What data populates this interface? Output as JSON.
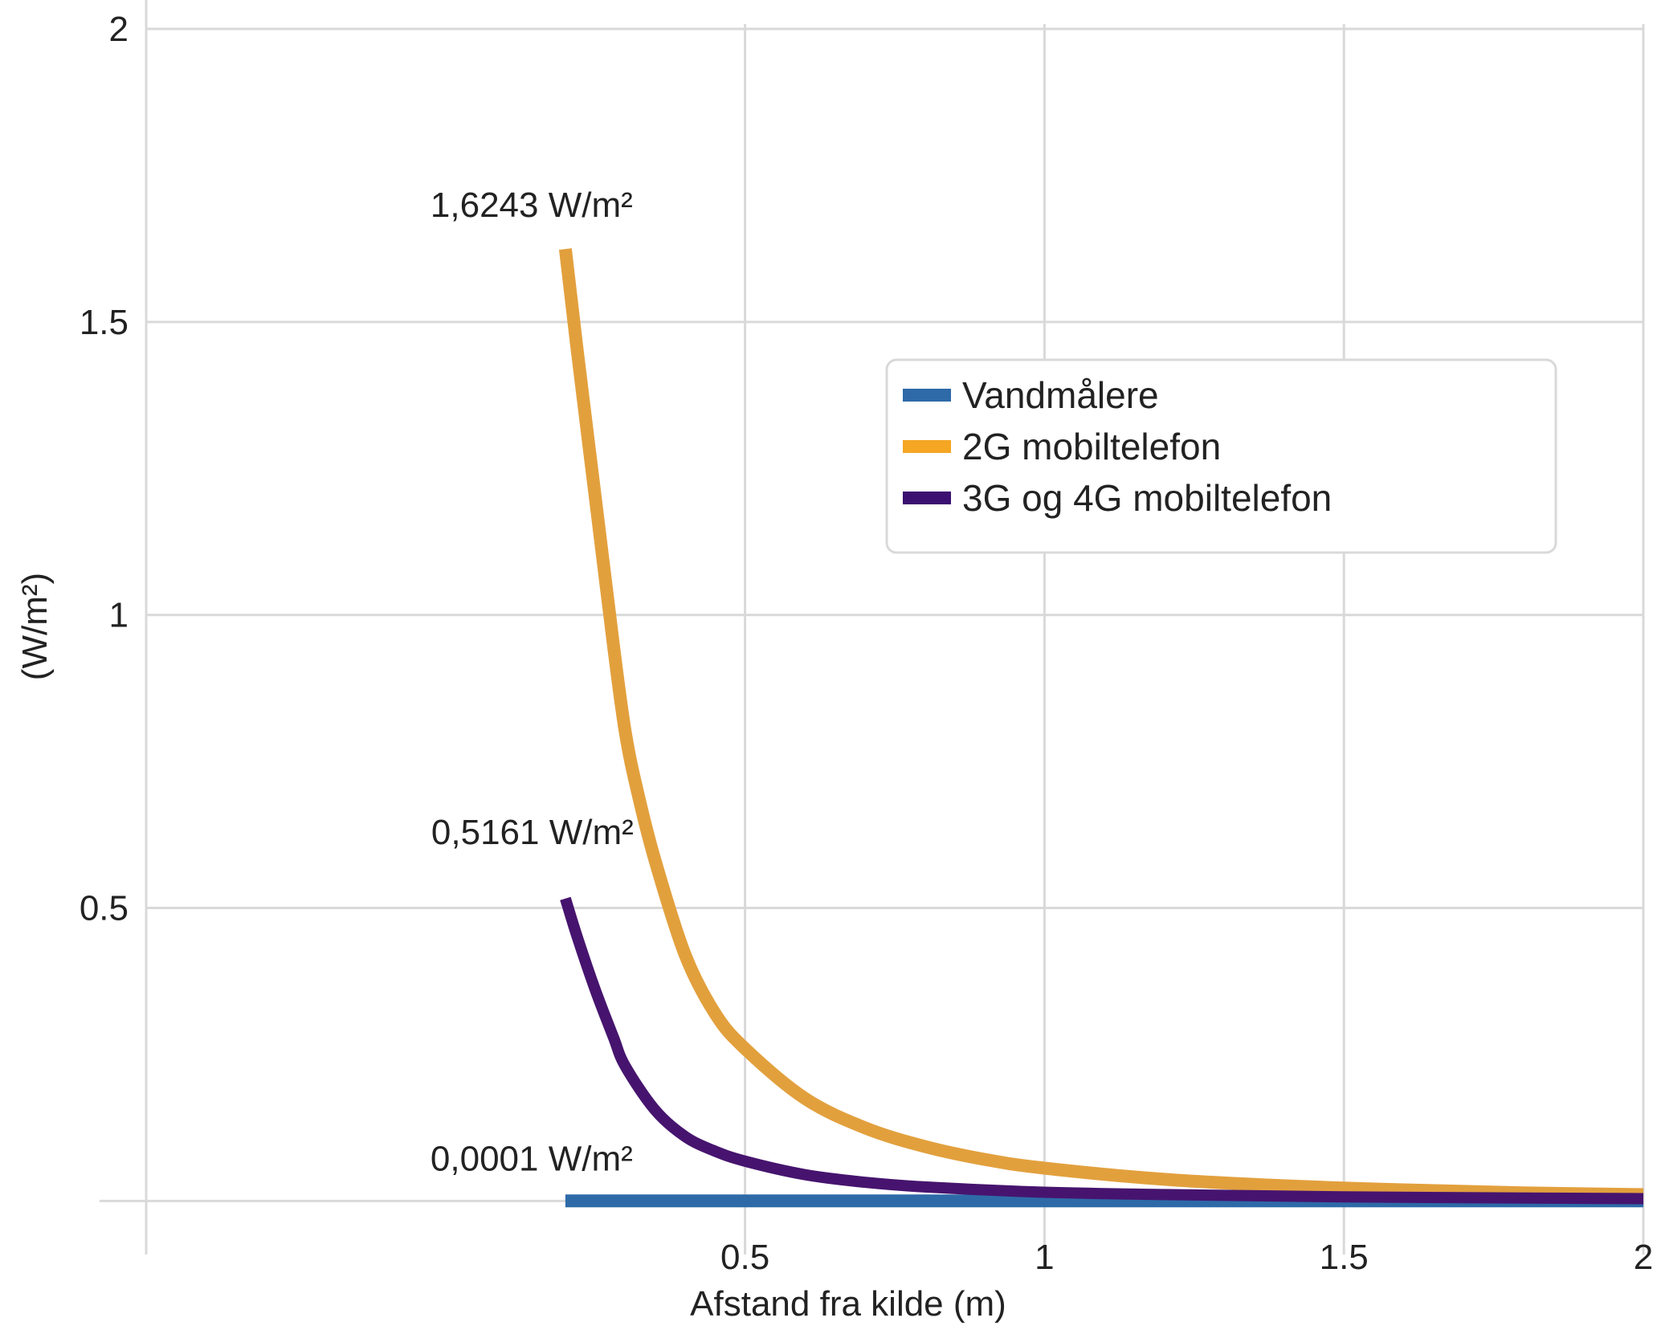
{
  "chart_data": {
    "type": "line",
    "title": "",
    "xlabel": "Afstand fra kilde (m)",
    "ylabel": "(W/m²)",
    "xlim": [
      -0.5,
      2
    ],
    "ylim": [
      -0.02,
      2
    ],
    "x_ticks": [
      {
        "value": 0.5,
        "label": "0.5"
      },
      {
        "value": 1,
        "label": "1"
      },
      {
        "value": 1.5,
        "label": "1.5"
      },
      {
        "value": 2,
        "label": "2"
      }
    ],
    "y_ticks": [
      {
        "value": 0.5,
        "label": "0.5"
      },
      {
        "value": 1,
        "label": "1"
      },
      {
        "value": 1.5,
        "label": "1.5"
      },
      {
        "value": 2,
        "label": "2"
      }
    ],
    "grid": true,
    "legend_position": "upper-right",
    "series": [
      {
        "name": "Vandmålere",
        "color": "#2e6aa8",
        "x": [
          0.2,
          0.5,
          1.0,
          1.5,
          2.0
        ],
        "y": [
          0.0001,
          0.0001,
          0.0001,
          0.0001,
          0.0001
        ]
      },
      {
        "name": "2G mobiltelefon",
        "color": "#e2a03d",
        "legend_color": "#f5a623",
        "x": [
          0.2,
          0.22,
          0.25,
          0.28,
          0.3,
          0.32,
          0.35,
          0.4,
          0.45,
          0.5,
          0.6,
          0.7,
          0.8,
          0.9,
          1.0,
          1.2,
          1.4,
          1.6,
          1.8,
          2.0
        ],
        "y": [
          1.6243,
          1.45,
          1.2,
          0.95,
          0.8,
          0.7,
          0.58,
          0.42,
          0.32,
          0.26,
          0.175,
          0.125,
          0.093,
          0.071,
          0.056,
          0.037,
          0.026,
          0.019,
          0.014,
          0.011
        ]
      },
      {
        "name": "3G og 4G mobiltelefon",
        "color": "#46146e",
        "legend_color": "#3b1070",
        "x": [
          0.2,
          0.22,
          0.25,
          0.28,
          0.3,
          0.35,
          0.4,
          0.45,
          0.5,
          0.6,
          0.7,
          0.8,
          1.0,
          1.2,
          1.5,
          2.0
        ],
        "y": [
          0.5161,
          0.45,
          0.36,
          0.28,
          0.23,
          0.155,
          0.11,
          0.085,
          0.068,
          0.045,
          0.032,
          0.024,
          0.015,
          0.011,
          0.007,
          0.004
        ]
      }
    ],
    "annotations": [
      {
        "text": "1,6243 W/m²",
        "series": 1
      },
      {
        "text": "0,5161  W/m²",
        "series": 2
      },
      {
        "text": "0,0001 W/m²",
        "series": 0
      }
    ]
  }
}
